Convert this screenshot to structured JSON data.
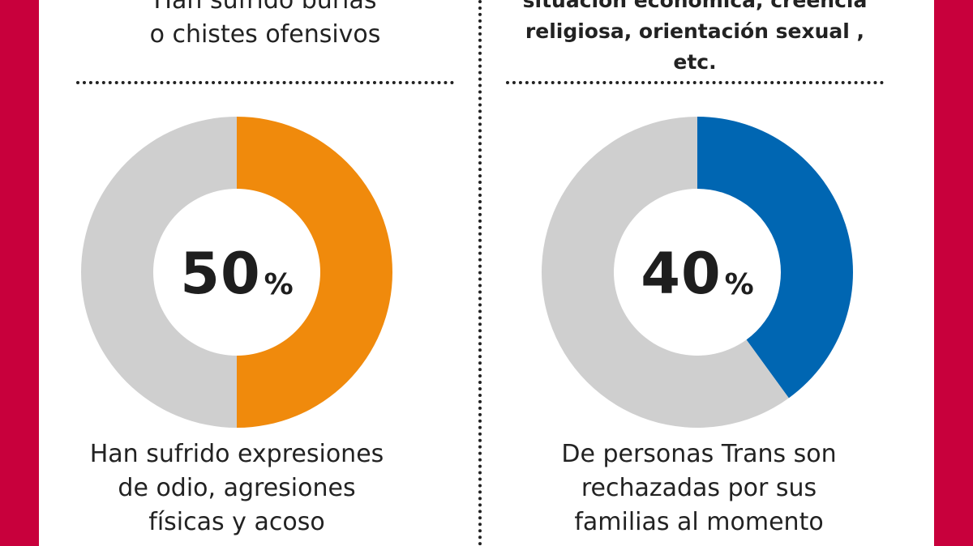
{
  "captions": {
    "top_left": [
      "Han sufrido burlas",
      "o chistes ofensivos"
    ],
    "top_right": [
      "situación económica, creencia",
      "religiosa, orientación sexual , etc."
    ],
    "bottom_left": [
      "Han sufrido expresiones",
      "de odio, agresiones",
      "físicas y acoso"
    ],
    "bottom_right": [
      "De personas Trans son",
      "rechazadas por sus",
      "familias al momento"
    ]
  },
  "colors": {
    "background": "#c8003c",
    "remainder": "#cfcfcf",
    "orange": "#f08a0c",
    "blue": "#0066b2"
  },
  "chart_data": [
    {
      "type": "pie",
      "variant": "donut",
      "value": 50,
      "value_label": "50",
      "unit": "%",
      "slices": [
        {
          "label": "",
          "value": 50,
          "color": "#f08a0c"
        },
        {
          "label": "",
          "value": 50,
          "color": "#cfcfcf"
        }
      ],
      "caption": "Han sufrido expresiones de odio, agresiones físicas y acoso"
    },
    {
      "type": "pie",
      "variant": "donut",
      "value": 40,
      "value_label": "40",
      "unit": "%",
      "slices": [
        {
          "label": "",
          "value": 40,
          "color": "#0066b2"
        },
        {
          "label": "",
          "value": 60,
          "color": "#cfcfcf"
        }
      ],
      "caption": "De personas Trans son rechazadas por sus familias al momento"
    }
  ]
}
